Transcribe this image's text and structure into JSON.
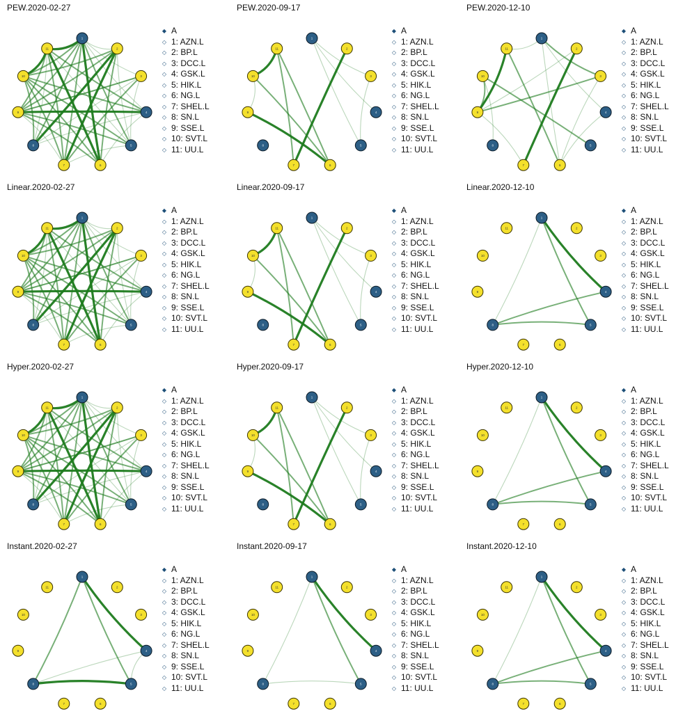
{
  "colors": {
    "node_A": "#2d5f86",
    "node_A_stroke": "#0b1a26",
    "node_B": "#f4e02c",
    "node_B_stroke": "#3a3300",
    "edge": "#1e7b1e",
    "legend_marker": "#1d4f78"
  },
  "legend": {
    "group_label": "A",
    "items": [
      "1: AZN.L",
      "2: BP.L",
      "3: DCC.L",
      "4: GSK.L",
      "5: HIK.L",
      "6: NG.L",
      "7: SHEL.L",
      "8: SN.L",
      "9: SSE.L",
      "10: SVT.L",
      "11: UU.L"
    ]
  },
  "nodes": [
    {
      "id": 1,
      "glyph": "1",
      "group": "A"
    },
    {
      "id": 2,
      "glyph": "2",
      "group": "B"
    },
    {
      "id": 3,
      "glyph": "3",
      "group": "B"
    },
    {
      "id": 4,
      "glyph": "4",
      "group": "A"
    },
    {
      "id": 5,
      "glyph": "5",
      "group": "A"
    },
    {
      "id": 6,
      "glyph": "6",
      "group": "B"
    },
    {
      "id": 7,
      "glyph": "7",
      "group": "B"
    },
    {
      "id": 8,
      "glyph": "8",
      "group": "A"
    },
    {
      "id": 9,
      "glyph": "9",
      "group": "B"
    },
    {
      "id": 10,
      "glyph": "10",
      "group": "B"
    },
    {
      "id": 11,
      "glyph": "11",
      "group": "B"
    }
  ],
  "panels": [
    {
      "title": "PEW.2020-02-27",
      "edges": [
        [
          1,
          11,
          3
        ],
        [
          1,
          10,
          2
        ],
        [
          1,
          9,
          2
        ],
        [
          1,
          8,
          2
        ],
        [
          1,
          7,
          2
        ],
        [
          1,
          6,
          3
        ],
        [
          1,
          5,
          2
        ],
        [
          1,
          4,
          1
        ],
        [
          1,
          3,
          1
        ],
        [
          1,
          2,
          1
        ],
        [
          2,
          10,
          2
        ],
        [
          2,
          9,
          2
        ],
        [
          2,
          8,
          3
        ],
        [
          2,
          7,
          3
        ],
        [
          2,
          6,
          2
        ],
        [
          2,
          5,
          1
        ],
        [
          3,
          9,
          2
        ],
        [
          3,
          8,
          1
        ],
        [
          3,
          7,
          2
        ],
        [
          4,
          9,
          3
        ],
        [
          4,
          10,
          2
        ],
        [
          4,
          11,
          2
        ],
        [
          4,
          8,
          1
        ],
        [
          5,
          9,
          2
        ],
        [
          5,
          10,
          2
        ],
        [
          5,
          11,
          1
        ],
        [
          6,
          10,
          2
        ],
        [
          6,
          11,
          3
        ],
        [
          6,
          9,
          2
        ],
        [
          7,
          10,
          2
        ],
        [
          7,
          11,
          2
        ],
        [
          8,
          10,
          2
        ],
        [
          8,
          11,
          1
        ],
        [
          9,
          11,
          2
        ],
        [
          10,
          11,
          3
        ],
        [
          3,
          5,
          1
        ],
        [
          4,
          6,
          1
        ],
        [
          7,
          9,
          1
        ],
        [
          9,
          3,
          1
        ],
        [
          5,
          7,
          1
        ]
      ]
    },
    {
      "title": "PEW.2020-09-17",
      "edges": [
        [
          2,
          7,
          3
        ],
        [
          10,
          11,
          3
        ],
        [
          11,
          6,
          2
        ],
        [
          10,
          6,
          2
        ],
        [
          9,
          6,
          3
        ],
        [
          11,
          7,
          2
        ],
        [
          1,
          4,
          1
        ],
        [
          1,
          3,
          1
        ],
        [
          1,
          5,
          1
        ],
        [
          9,
          10,
          1
        ],
        [
          3,
          5,
          1
        ]
      ]
    },
    {
      "title": "PEW.2020-12-10",
      "edges": [
        [
          2,
          7,
          3
        ],
        [
          11,
          9,
          3
        ],
        [
          10,
          9,
          2
        ],
        [
          3,
          9,
          2
        ],
        [
          11,
          6,
          2
        ],
        [
          10,
          5,
          2
        ],
        [
          1,
          3,
          2
        ],
        [
          1,
          11,
          1
        ],
        [
          1,
          6,
          1
        ],
        [
          3,
          6,
          1
        ],
        [
          4,
          6,
          1
        ],
        [
          1,
          4,
          1
        ],
        [
          9,
          7,
          1
        ],
        [
          10,
          8,
          1
        ],
        [
          2,
          9,
          1
        ]
      ]
    },
    {
      "title": "Linear.2020-02-27",
      "edges": [
        [
          1,
          11,
          3
        ],
        [
          1,
          10,
          2
        ],
        [
          1,
          9,
          2
        ],
        [
          1,
          8,
          2
        ],
        [
          1,
          7,
          2
        ],
        [
          1,
          6,
          3
        ],
        [
          1,
          5,
          2
        ],
        [
          1,
          4,
          1
        ],
        [
          1,
          3,
          1
        ],
        [
          1,
          2,
          1
        ],
        [
          2,
          10,
          2
        ],
        [
          2,
          9,
          2
        ],
        [
          2,
          8,
          3
        ],
        [
          2,
          7,
          3
        ],
        [
          2,
          6,
          2
        ],
        [
          2,
          5,
          1
        ],
        [
          3,
          9,
          2
        ],
        [
          3,
          8,
          1
        ],
        [
          3,
          7,
          2
        ],
        [
          4,
          9,
          3
        ],
        [
          4,
          10,
          2
        ],
        [
          4,
          11,
          2
        ],
        [
          4,
          8,
          1
        ],
        [
          5,
          9,
          2
        ],
        [
          5,
          10,
          2
        ],
        [
          5,
          11,
          1
        ],
        [
          6,
          10,
          2
        ],
        [
          6,
          11,
          3
        ],
        [
          6,
          9,
          2
        ],
        [
          7,
          10,
          2
        ],
        [
          7,
          11,
          2
        ],
        [
          8,
          10,
          2
        ],
        [
          8,
          11,
          1
        ],
        [
          9,
          11,
          2
        ],
        [
          10,
          11,
          3
        ],
        [
          3,
          5,
          1
        ],
        [
          4,
          6,
          1
        ],
        [
          7,
          9,
          1
        ],
        [
          9,
          3,
          1
        ],
        [
          5,
          7,
          1
        ]
      ]
    },
    {
      "title": "Linear.2020-09-17",
      "edges": [
        [
          2,
          7,
          3
        ],
        [
          10,
          11,
          3
        ],
        [
          11,
          6,
          2
        ],
        [
          10,
          6,
          2
        ],
        [
          9,
          6,
          3
        ],
        [
          11,
          7,
          2
        ],
        [
          1,
          4,
          1
        ],
        [
          1,
          3,
          1
        ],
        [
          1,
          5,
          1
        ],
        [
          9,
          10,
          1
        ],
        [
          3,
          5,
          1
        ]
      ]
    },
    {
      "title": "Linear.2020-12-10",
      "edges": [
        [
          1,
          4,
          3
        ],
        [
          1,
          5,
          2
        ],
        [
          4,
          8,
          2
        ],
        [
          8,
          5,
          2
        ],
        [
          1,
          8,
          1
        ]
      ]
    },
    {
      "title": "Hyper.2020-02-27",
      "edges": [
        [
          1,
          11,
          3
        ],
        [
          1,
          10,
          2
        ],
        [
          1,
          9,
          2
        ],
        [
          1,
          8,
          2
        ],
        [
          1,
          7,
          2
        ],
        [
          1,
          6,
          3
        ],
        [
          1,
          5,
          2
        ],
        [
          1,
          4,
          1
        ],
        [
          1,
          3,
          1
        ],
        [
          1,
          2,
          1
        ],
        [
          2,
          10,
          2
        ],
        [
          2,
          9,
          2
        ],
        [
          2,
          8,
          3
        ],
        [
          2,
          7,
          3
        ],
        [
          2,
          6,
          2
        ],
        [
          2,
          5,
          1
        ],
        [
          3,
          9,
          2
        ],
        [
          3,
          8,
          1
        ],
        [
          3,
          7,
          2
        ],
        [
          4,
          9,
          3
        ],
        [
          4,
          10,
          2
        ],
        [
          4,
          11,
          2
        ],
        [
          4,
          8,
          1
        ],
        [
          5,
          9,
          2
        ],
        [
          5,
          10,
          2
        ],
        [
          5,
          11,
          1
        ],
        [
          6,
          10,
          2
        ],
        [
          6,
          11,
          3
        ],
        [
          6,
          9,
          2
        ],
        [
          7,
          10,
          2
        ],
        [
          7,
          11,
          2
        ],
        [
          8,
          10,
          2
        ],
        [
          8,
          11,
          1
        ],
        [
          9,
          11,
          2
        ],
        [
          10,
          11,
          3
        ],
        [
          3,
          5,
          1
        ],
        [
          4,
          6,
          1
        ],
        [
          7,
          9,
          1
        ],
        [
          9,
          3,
          1
        ],
        [
          5,
          7,
          1
        ]
      ]
    },
    {
      "title": "Hyper.2020-09-17",
      "edges": [
        [
          2,
          7,
          3
        ],
        [
          10,
          11,
          3
        ],
        [
          11,
          6,
          2
        ],
        [
          10,
          6,
          2
        ],
        [
          9,
          6,
          3
        ],
        [
          11,
          7,
          2
        ],
        [
          1,
          4,
          1
        ],
        [
          1,
          3,
          1
        ],
        [
          1,
          5,
          1
        ],
        [
          9,
          10,
          1
        ],
        [
          3,
          5,
          1
        ]
      ]
    },
    {
      "title": "Hyper.2020-12-10",
      "edges": [
        [
          1,
          4,
          3
        ],
        [
          1,
          5,
          2
        ],
        [
          4,
          8,
          2
        ],
        [
          8,
          5,
          2
        ],
        [
          1,
          8,
          1
        ]
      ]
    },
    {
      "title": "Instant.2020-02-27",
      "edges": [
        [
          1,
          4,
          3
        ],
        [
          1,
          5,
          2
        ],
        [
          1,
          8,
          2
        ],
        [
          8,
          5,
          3
        ],
        [
          4,
          8,
          1
        ],
        [
          4,
          5,
          1
        ]
      ]
    },
    {
      "title": "Instant.2020-09-17",
      "edges": [
        [
          1,
          4,
          3
        ],
        [
          1,
          5,
          2
        ],
        [
          1,
          8,
          1
        ],
        [
          8,
          5,
          1
        ]
      ]
    },
    {
      "title": "Instant.2020-12-10",
      "edges": [
        [
          1,
          4,
          3
        ],
        [
          1,
          5,
          2
        ],
        [
          4,
          8,
          2
        ],
        [
          8,
          5,
          2
        ],
        [
          1,
          8,
          1
        ]
      ]
    }
  ]
}
